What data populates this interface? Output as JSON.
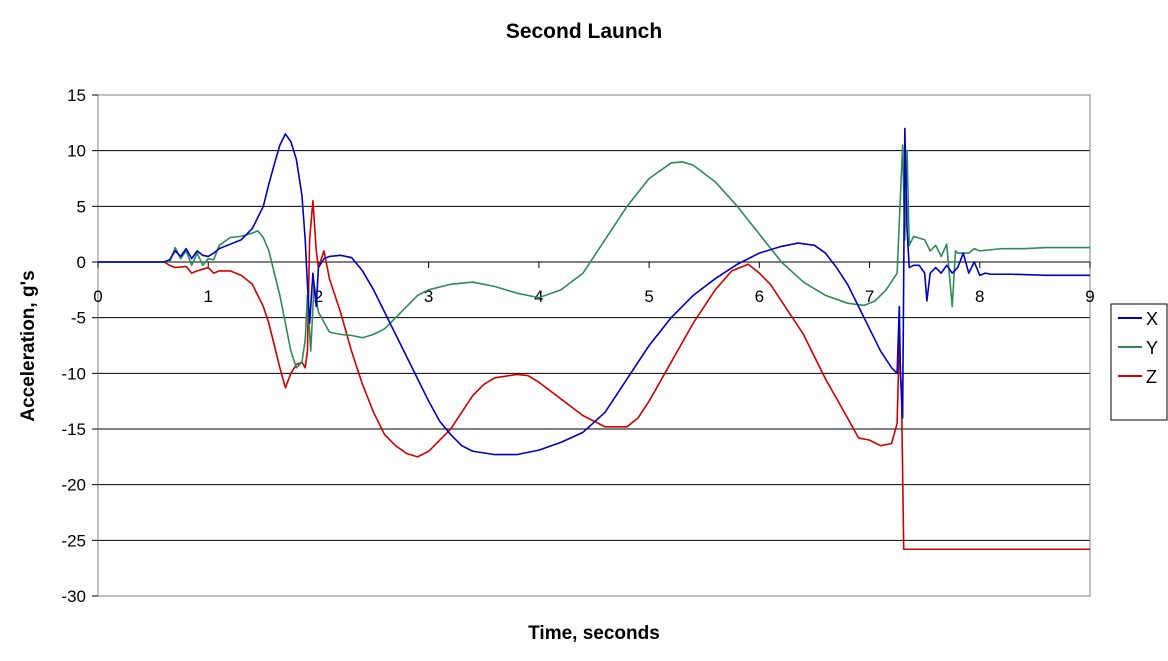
{
  "chart_data": {
    "type": "line",
    "title": "Second Launch",
    "xlabel": "Time, seconds",
    "ylabel": "Acceleration, g's",
    "xlim": [
      0,
      9
    ],
    "ylim": [
      -30,
      15
    ],
    "xticks": [
      "0",
      "1",
      "2",
      "3",
      "4",
      "5",
      "6",
      "7",
      "8",
      "9"
    ],
    "yticks": [
      "15",
      "10",
      "5",
      "0",
      "-5",
      "-10",
      "-15",
      "-20",
      "-25",
      "-30"
    ],
    "grid": "horizontal",
    "legend": "right",
    "series": [
      {
        "name": "X",
        "color": "#0000c0",
        "points": [
          [
            0,
            0
          ],
          [
            0.6,
            0
          ],
          [
            0.65,
            0.2
          ],
          [
            0.7,
            1.0
          ],
          [
            0.75,
            0.5
          ],
          [
            0.8,
            1.2
          ],
          [
            0.85,
            0.3
          ],
          [
            0.9,
            1.0
          ],
          [
            0.95,
            0.6
          ],
          [
            1.0,
            0.5
          ],
          [
            1.05,
            0.8
          ],
          [
            1.1,
            1.2
          ],
          [
            1.2,
            1.6
          ],
          [
            1.3,
            2.0
          ],
          [
            1.4,
            3.0
          ],
          [
            1.5,
            5.0
          ],
          [
            1.55,
            7.0
          ],
          [
            1.6,
            8.8
          ],
          [
            1.65,
            10.5
          ],
          [
            1.7,
            11.5
          ],
          [
            1.75,
            10.8
          ],
          [
            1.8,
            9.2
          ],
          [
            1.85,
            6.0
          ],
          [
            1.88,
            2.0
          ],
          [
            1.9,
            -2.0
          ],
          [
            1.92,
            -5.5
          ],
          [
            1.95,
            -1.0
          ],
          [
            1.98,
            -4.0
          ],
          [
            2.0,
            -0.5
          ],
          [
            2.05,
            0.3
          ],
          [
            2.1,
            0.5
          ],
          [
            2.2,
            0.6
          ],
          [
            2.3,
            0.4
          ],
          [
            2.4,
            -0.8
          ],
          [
            2.5,
            -2.5
          ],
          [
            2.6,
            -4.5
          ],
          [
            2.7,
            -6.5
          ],
          [
            2.8,
            -8.5
          ],
          [
            2.9,
            -10.5
          ],
          [
            3.0,
            -12.5
          ],
          [
            3.1,
            -14.3
          ],
          [
            3.2,
            -15.5
          ],
          [
            3.3,
            -16.5
          ],
          [
            3.4,
            -17.0
          ],
          [
            3.6,
            -17.3
          ],
          [
            3.8,
            -17.3
          ],
          [
            4.0,
            -16.9
          ],
          [
            4.2,
            -16.2
          ],
          [
            4.4,
            -15.3
          ],
          [
            4.6,
            -13.5
          ],
          [
            4.8,
            -10.5
          ],
          [
            5.0,
            -7.5
          ],
          [
            5.2,
            -5.0
          ],
          [
            5.4,
            -3.0
          ],
          [
            5.6,
            -1.5
          ],
          [
            5.8,
            -0.2
          ],
          [
            6.0,
            0.8
          ],
          [
            6.2,
            1.4
          ],
          [
            6.35,
            1.7
          ],
          [
            6.5,
            1.5
          ],
          [
            6.6,
            0.8
          ],
          [
            6.7,
            -0.5
          ],
          [
            6.8,
            -2.0
          ],
          [
            6.9,
            -4.0
          ],
          [
            7.0,
            -6.0
          ],
          [
            7.1,
            -8.0
          ],
          [
            7.2,
            -9.5
          ],
          [
            7.25,
            -10.0
          ],
          [
            7.27,
            -4.0
          ],
          [
            7.28,
            -10.0
          ],
          [
            7.3,
            -14.0
          ],
          [
            7.32,
            12.0
          ],
          [
            7.34,
            3.0
          ],
          [
            7.36,
            -0.5
          ],
          [
            7.4,
            -0.3
          ],
          [
            7.45,
            -0.3
          ],
          [
            7.5,
            -1.0
          ],
          [
            7.52,
            -3.5
          ],
          [
            7.55,
            -1.0
          ],
          [
            7.6,
            -0.5
          ],
          [
            7.65,
            -1.0
          ],
          [
            7.7,
            -0.3
          ],
          [
            7.75,
            -1.0
          ],
          [
            7.8,
            -0.5
          ],
          [
            7.85,
            0.8
          ],
          [
            7.9,
            -1.0
          ],
          [
            7.95,
            0.0
          ],
          [
            8.0,
            -1.2
          ],
          [
            8.05,
            -1.0
          ],
          [
            8.1,
            -1.1
          ],
          [
            8.3,
            -1.1
          ],
          [
            8.6,
            -1.2
          ],
          [
            9.0,
            -1.2
          ]
        ]
      },
      {
        "name": "Y",
        "color": "#2e8b57",
        "points": [
          [
            0,
            0
          ],
          [
            0.6,
            0
          ],
          [
            0.65,
            0.0
          ],
          [
            0.7,
            1.3
          ],
          [
            0.75,
            0.3
          ],
          [
            0.8,
            1.0
          ],
          [
            0.85,
            -0.3
          ],
          [
            0.9,
            0.8
          ],
          [
            0.95,
            -0.3
          ],
          [
            1.0,
            0.3
          ],
          [
            1.05,
            0.2
          ],
          [
            1.1,
            1.5
          ],
          [
            1.2,
            2.2
          ],
          [
            1.3,
            2.3
          ],
          [
            1.4,
            2.6
          ],
          [
            1.45,
            2.8
          ],
          [
            1.5,
            2.2
          ],
          [
            1.55,
            1.0
          ],
          [
            1.6,
            -1.0
          ],
          [
            1.65,
            -3.0
          ],
          [
            1.7,
            -5.5
          ],
          [
            1.75,
            -8.0
          ],
          [
            1.8,
            -9.5
          ],
          [
            1.85,
            -9.0
          ],
          [
            1.88,
            -7.0
          ],
          [
            1.9,
            -3.0
          ],
          [
            1.93,
            -8.0
          ],
          [
            1.96,
            -2.0
          ],
          [
            2.0,
            -4.5
          ],
          [
            2.1,
            -6.3
          ],
          [
            2.2,
            -6.5
          ],
          [
            2.3,
            -6.6
          ],
          [
            2.4,
            -6.8
          ],
          [
            2.5,
            -6.5
          ],
          [
            2.6,
            -6.0
          ],
          [
            2.7,
            -5.0
          ],
          [
            2.8,
            -4.0
          ],
          [
            2.9,
            -3.0
          ],
          [
            3.0,
            -2.5
          ],
          [
            3.2,
            -2.0
          ],
          [
            3.4,
            -1.8
          ],
          [
            3.6,
            -2.2
          ],
          [
            3.8,
            -2.8
          ],
          [
            4.0,
            -3.2
          ],
          [
            4.2,
            -2.5
          ],
          [
            4.4,
            -1.0
          ],
          [
            4.6,
            2.0
          ],
          [
            4.8,
            5.0
          ],
          [
            5.0,
            7.5
          ],
          [
            5.2,
            8.9
          ],
          [
            5.3,
            9.0
          ],
          [
            5.4,
            8.7
          ],
          [
            5.6,
            7.2
          ],
          [
            5.8,
            5.0
          ],
          [
            6.0,
            2.5
          ],
          [
            6.2,
            0.0
          ],
          [
            6.4,
            -1.8
          ],
          [
            6.6,
            -3.0
          ],
          [
            6.8,
            -3.7
          ],
          [
            6.95,
            -3.9
          ],
          [
            7.05,
            -3.5
          ],
          [
            7.15,
            -2.5
          ],
          [
            7.25,
            -1.0
          ],
          [
            7.3,
            10.5
          ],
          [
            7.32,
            2.0
          ],
          [
            7.34,
            10.0
          ],
          [
            7.36,
            1.5
          ],
          [
            7.4,
            2.3
          ],
          [
            7.5,
            2.0
          ],
          [
            7.55,
            1.0
          ],
          [
            7.6,
            1.5
          ],
          [
            7.65,
            0.5
          ],
          [
            7.7,
            1.6
          ],
          [
            7.75,
            -4.0
          ],
          [
            7.78,
            1.0
          ],
          [
            7.8,
            0.8
          ],
          [
            7.9,
            0.8
          ],
          [
            7.95,
            1.2
          ],
          [
            8.0,
            1.0
          ],
          [
            8.2,
            1.2
          ],
          [
            8.4,
            1.2
          ],
          [
            8.6,
            1.3
          ],
          [
            9.0,
            1.3
          ]
        ]
      },
      {
        "name": "Z",
        "color": "#d00000",
        "points": [
          [
            0,
            0
          ],
          [
            0.6,
            0
          ],
          [
            0.65,
            -0.3
          ],
          [
            0.7,
            -0.5
          ],
          [
            0.8,
            -0.4
          ],
          [
            0.85,
            -1.0
          ],
          [
            0.9,
            -0.8
          ],
          [
            1.0,
            -0.5
          ],
          [
            1.05,
            -1.0
          ],
          [
            1.1,
            -0.8
          ],
          [
            1.2,
            -0.8
          ],
          [
            1.3,
            -1.2
          ],
          [
            1.4,
            -2.0
          ],
          [
            1.5,
            -4.0
          ],
          [
            1.55,
            -5.5
          ],
          [
            1.6,
            -7.5
          ],
          [
            1.65,
            -9.5
          ],
          [
            1.7,
            -11.3
          ],
          [
            1.75,
            -10.0
          ],
          [
            1.8,
            -9.2
          ],
          [
            1.85,
            -9.0
          ],
          [
            1.88,
            -9.5
          ],
          [
            1.9,
            -8.0
          ],
          [
            1.92,
            2.0
          ],
          [
            1.95,
            5.5
          ],
          [
            1.98,
            1.0
          ],
          [
            2.0,
            -0.5
          ],
          [
            2.05,
            1.0
          ],
          [
            2.1,
            -1.5
          ],
          [
            2.2,
            -4.5
          ],
          [
            2.3,
            -8.0
          ],
          [
            2.4,
            -11.0
          ],
          [
            2.5,
            -13.5
          ],
          [
            2.6,
            -15.5
          ],
          [
            2.7,
            -16.5
          ],
          [
            2.8,
            -17.2
          ],
          [
            2.9,
            -17.5
          ],
          [
            3.0,
            -17.0
          ],
          [
            3.1,
            -16.0
          ],
          [
            3.2,
            -15.0
          ],
          [
            3.3,
            -13.5
          ],
          [
            3.4,
            -12.0
          ],
          [
            3.5,
            -11.0
          ],
          [
            3.6,
            -10.4
          ],
          [
            3.8,
            -10.1
          ],
          [
            3.9,
            -10.2
          ],
          [
            4.0,
            -10.8
          ],
          [
            4.2,
            -12.3
          ],
          [
            4.4,
            -13.8
          ],
          [
            4.6,
            -14.8
          ],
          [
            4.8,
            -14.8
          ],
          [
            4.9,
            -14.0
          ],
          [
            5.0,
            -12.5
          ],
          [
            5.2,
            -9.0
          ],
          [
            5.4,
            -5.5
          ],
          [
            5.6,
            -2.5
          ],
          [
            5.75,
            -0.8
          ],
          [
            5.9,
            -0.2
          ],
          [
            6.0,
            -1.0
          ],
          [
            6.1,
            -2.0
          ],
          [
            6.2,
            -3.5
          ],
          [
            6.4,
            -6.5
          ],
          [
            6.6,
            -10.5
          ],
          [
            6.8,
            -14.0
          ],
          [
            6.9,
            -15.8
          ],
          [
            7.0,
            -16.0
          ],
          [
            7.1,
            -16.5
          ],
          [
            7.2,
            -16.3
          ],
          [
            7.25,
            -14.5
          ],
          [
            7.27,
            -7.0
          ],
          [
            7.29,
            -12.0
          ],
          [
            7.31,
            -25.8
          ],
          [
            7.5,
            -25.8
          ],
          [
            8.0,
            -25.8
          ],
          [
            9.0,
            -25.8
          ]
        ]
      }
    ]
  }
}
